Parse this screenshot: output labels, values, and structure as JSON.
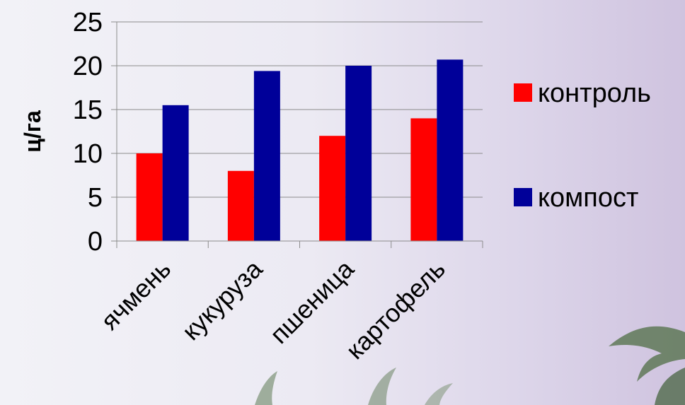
{
  "chart_data": {
    "type": "bar",
    "categories": [
      "ячмень",
      "кукуруза",
      "пшеница",
      "картофель"
    ],
    "series": [
      {
        "name": "контроль",
        "values": [
          10,
          8,
          12,
          14
        ],
        "color": "#ff0000"
      },
      {
        "name": "компост",
        "values": [
          15.5,
          19.4,
          20,
          20.7
        ],
        "color": "#000099"
      }
    ],
    "ylabel": "ц/га",
    "xlabel": "",
    "title": "",
    "ylim": [
      0,
      25
    ],
    "yticks": [
      0,
      5,
      10,
      15,
      20,
      25
    ],
    "grid": true,
    "legend_position": "right",
    "background_colors": [
      "#f2f2f7",
      "#cfc3df"
    ],
    "gridline_color": "#8c8c8c"
  }
}
